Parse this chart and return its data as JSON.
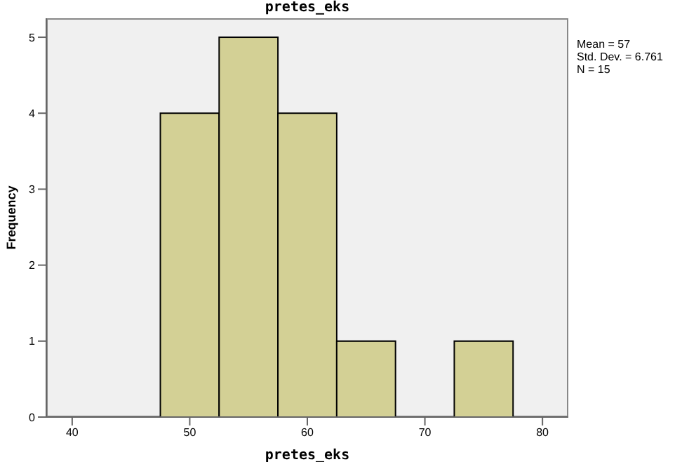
{
  "chart_data": {
    "type": "histogram",
    "title": "pretes_eks",
    "xlabel": "pretes_eks",
    "ylabel": "Frequency",
    "bins": [
      47.5,
      52.5,
      57.5,
      62.5,
      67.5,
      72.5,
      77.5
    ],
    "values": [
      4,
      5,
      4,
      1,
      0,
      1
    ],
    "color": "#d3d095",
    "xlim": [
      37.8,
      82.2
    ],
    "xticks": [
      40,
      50,
      60,
      70,
      80
    ],
    "ylim": [
      0,
      5.25
    ],
    "yticks": [
      0,
      1,
      2,
      3,
      4,
      5
    ],
    "annotations": [
      "Mean = 57",
      "Std. Dev. = 6.761",
      "N = 15"
    ]
  }
}
